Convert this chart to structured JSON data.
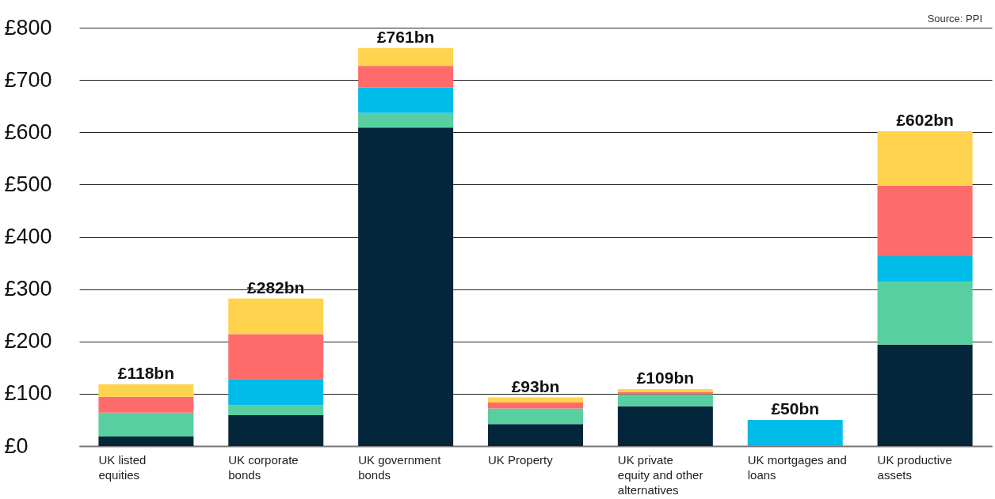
{
  "chart_data": {
    "type": "bar",
    "stacked": true,
    "categories": [
      "UK listed equities",
      "UK corporate bonds",
      "UK government bonds",
      "UK Property",
      "UK private equity and other alternatives",
      "UK mortgages and loans",
      "UK productive assets"
    ],
    "series": [
      {
        "color": "#03263a",
        "values": [
          18,
          59,
          609,
          42,
          76,
          null,
          194
        ]
      },
      {
        "color": "#57cfa0",
        "values": [
          46,
          19,
          28,
          30,
          23,
          null,
          120
        ]
      },
      {
        "color": "#00bce8",
        "values": [
          null,
          50,
          49,
          null,
          null,
          50,
          49
        ]
      },
      {
        "color": "#ff6b6b",
        "values": [
          30,
          86,
          41,
          11,
          4,
          null,
          135
        ]
      },
      {
        "color": "#ffd34e",
        "values": [
          24,
          68,
          34,
          10,
          6,
          null,
          104
        ]
      }
    ],
    "totals": [
      "£118bn",
      "£282bn",
      "£761bn",
      "£93bn",
      "£109bn",
      "£50bn",
      "£602bn"
    ],
    "ylim": [
      0,
      800
    ],
    "yticks": [
      {
        "value": 0,
        "label": "£0"
      },
      {
        "value": 100,
        "label": "£100"
      },
      {
        "value": 200,
        "label": "£200"
      },
      {
        "value": 300,
        "label": "£300"
      },
      {
        "value": 400,
        "label": "£400"
      },
      {
        "value": 500,
        "label": "£500"
      },
      {
        "value": 600,
        "label": "£600"
      },
      {
        "value": 700,
        "label": "£700"
      },
      {
        "value": 800,
        "label": "£800"
      }
    ],
    "grid": "y",
    "legend": false,
    "annotations": [
      "Source: PPI"
    ]
  }
}
